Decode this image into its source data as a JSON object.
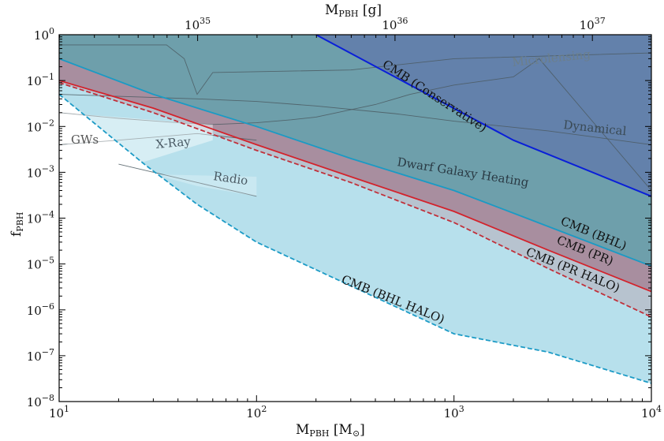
{
  "chart_data": {
    "type": "area",
    "xlabel": "M_PBH [M_⊙]",
    "ylabel": "f_PBH",
    "top_xlabel": "M_PBH [g]",
    "x_scale": "log",
    "y_scale": "log",
    "xlim": [
      10,
      10000
    ],
    "ylim": [
      1e-08,
      1
    ],
    "grid": false,
    "x_ticks": [
      {
        "value": 10,
        "base": "10",
        "exp": "1"
      },
      {
        "value": 100,
        "base": "10",
        "exp": "2"
      },
      {
        "value": 1000,
        "base": "10",
        "exp": "3"
      },
      {
        "value": 10000,
        "base": "10",
        "exp": "4"
      }
    ],
    "top_x_ticks": [
      {
        "value": 1e+35,
        "base": "10",
        "exp": "35"
      },
      {
        "value": 1e+36,
        "base": "10",
        "exp": "36"
      },
      {
        "value": 1e+37,
        "base": "10",
        "exp": "37"
      }
    ],
    "y_ticks": [
      {
        "value": 1,
        "base": "10",
        "exp": "0"
      },
      {
        "value": 0.1,
        "base": "10",
        "exp": "−1"
      },
      {
        "value": 0.01,
        "base": "10",
        "exp": "−2"
      },
      {
        "value": 0.001,
        "base": "10",
        "exp": "−3"
      },
      {
        "value": 0.0001,
        "base": "10",
        "exp": "−4"
      },
      {
        "value": 1e-05,
        "base": "10",
        "exp": "−5"
      },
      {
        "value": 1e-06,
        "base": "10",
        "exp": "−6"
      },
      {
        "value": 1e-07,
        "base": "10",
        "exp": "−7"
      },
      {
        "value": 1e-08,
        "base": "10",
        "exp": "−8"
      }
    ],
    "series": [
      {
        "name": "CMB (BHL HALO)",
        "style": "dashed",
        "color": "#1d9bc6",
        "fill": "#b7e0ec",
        "x": [
          10,
          27,
          50,
          100,
          500,
          1000,
          3000,
          10000
        ],
        "y": [
          0.05,
          0.0015,
          0.0002,
          3e-05,
          1.2e-06,
          3e-07,
          1.2e-07,
          2.5e-08
        ]
      },
      {
        "name": "CMB (PR HALO)",
        "style": "dashed",
        "color": "#c0303a",
        "fill": "#b7c3cf",
        "x": [
          10,
          30,
          100,
          300,
          1000,
          3000,
          10000
        ],
        "y": [
          0.09,
          0.02,
          0.003,
          0.0006,
          8e-05,
          8e-06,
          7e-07
        ]
      },
      {
        "name": "CMB (PR)",
        "style": "solid",
        "color": "#d3232c",
        "fill": "#a88e9f",
        "x": [
          10,
          30,
          100,
          300,
          1000,
          3000,
          10000
        ],
        "y": [
          0.1,
          0.025,
          0.004,
          0.0008,
          0.00014,
          2e-05,
          2.5e-06
        ]
      },
      {
        "name": "CMB (BHL)",
        "style": "solid",
        "color": "#1b9ac4",
        "fill": "#6e9fab",
        "x": [
          10,
          30,
          100,
          300,
          1000,
          2200,
          10000
        ],
        "y": [
          0.3,
          0.05,
          0.01,
          0.002,
          0.0004,
          0.00011,
          9e-06
        ]
      },
      {
        "name": "CMB (Conservative)",
        "style": "solid",
        "color": "#0a1fd8",
        "fill": "#6381ab",
        "x": [
          200,
          2000,
          10000
        ],
        "y": [
          1,
          0.005,
          0.0003
        ]
      }
    ],
    "other_constraints": [
      {
        "name": "Microlensing",
        "x": [
          10,
          35,
          43,
          50,
          60,
          300,
          1000,
          10000
        ],
        "y": [
          0.6,
          0.6,
          0.3,
          0.05,
          0.15,
          0.17,
          0.3,
          0.4
        ]
      },
      {
        "name": "Dynamical",
        "x": [
          10,
          50,
          100,
          200,
          500,
          1000,
          3000,
          10000
        ],
        "y": [
          0.05,
          0.04,
          0.035,
          0.028,
          0.019,
          0.013,
          0.008,
          0.004
        ]
      },
      {
        "name": "Dwarf Galaxy Heating",
        "x": [
          60,
          100,
          150,
          200,
          400,
          600,
          1000,
          2000,
          2700,
          10000
        ],
        "y": [
          0.011,
          0.012,
          0.014,
          0.016,
          0.03,
          0.05,
          0.08,
          0.12,
          0.3,
          0.0004
        ]
      },
      {
        "name": "GWs",
        "x": [
          10,
          20,
          40,
          60
        ],
        "y": [
          0.02,
          0.015,
          0.012,
          0.011
        ]
      },
      {
        "name": "X-Ray",
        "x": [
          10,
          20,
          50,
          100
        ],
        "y": [
          0.004,
          0.005,
          0.007,
          0.005
        ]
      },
      {
        "name": "Radio",
        "x": [
          20,
          50,
          100
        ],
        "y": [
          0.0015,
          0.0006,
          0.0003
        ]
      }
    ],
    "labels": {
      "microlensing": "Microlensing",
      "dynamical": "Dynamical",
      "dwarf": "Dwarf Galaxy Heating",
      "gws": "GWs",
      "xray": "X-Ray",
      "radio": "Radio",
      "cmb_conservative": "CMB (Conservative)",
      "cmb_bhl": "CMB (BHL)",
      "cmb_pr": "CMB (PR)",
      "cmb_pr_halo": "CMB (PR HALO)",
      "cmb_bhl_halo": "CMB (BHL HALO)"
    }
  }
}
